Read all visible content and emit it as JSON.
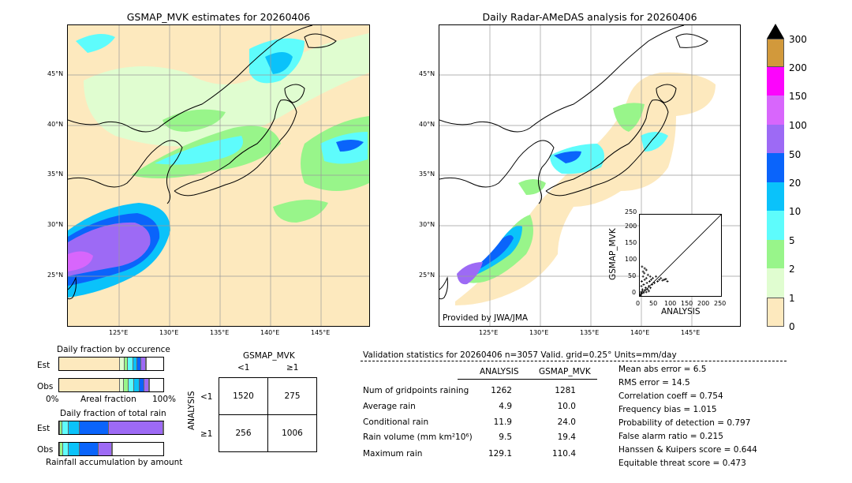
{
  "colors": {
    "land_bg": "#fde9be",
    "c1": "#fde9be",
    "c2": "#e0fdd0",
    "c3": "#98f58a",
    "c4": "#5efcfc",
    "c5": "#0ac2fa",
    "c6": "#0a64fb",
    "c7": "#9d6af5",
    "c8": "#d866fc",
    "c9": "#fc05fc",
    "c10": "#d2993b",
    "coast": "#000000",
    "grid": "#9a9a9a"
  },
  "left_map": {
    "title": "GSMAP_MVK estimates for 20260406",
    "lat_labels": [
      "45°N",
      "40°N",
      "35°N",
      "30°N",
      "25°N"
    ],
    "lon_labels": [
      "125°E",
      "130°E",
      "135°E",
      "140°E",
      "145°E"
    ]
  },
  "right_map": {
    "title": "Daily Radar-AMeDAS analysis for 20260406",
    "lat_labels": [
      "45°N",
      "40°N",
      "35°N",
      "30°N",
      "25°N"
    ],
    "lon_labels": [
      "125°E",
      "130°E",
      "135°E",
      "140°E",
      "145°E"
    ],
    "credit": "Provided by JWA/JMA"
  },
  "colorbar": {
    "labels": [
      "0",
      "1",
      "2",
      "5",
      "10",
      "20",
      "50",
      "100",
      "150",
      "200",
      "300"
    ]
  },
  "scatter": {
    "ylabel": "GSMAP_MVK",
    "xlabel": "ANALYSIS",
    "ticks": [
      "0",
      "50",
      "100",
      "150",
      "200",
      "250"
    ]
  },
  "occurrence": {
    "title": "Daily fraction by occurence",
    "est_label": "Est",
    "obs_label": "Obs",
    "axis_left": "0%",
    "axis_mid": "Areal fraction",
    "axis_right": "100%"
  },
  "total_rain": {
    "title": "Daily fraction of total rain",
    "est_label": "Est",
    "obs_label": "Obs",
    "footer": "Rainfall accumulation by amount"
  },
  "contingency": {
    "title": "GSMAP_MVK",
    "col_lt1": "<1",
    "col_ge1": "≥1",
    "row_axis": "ANALYSIS",
    "row_lt1": "<1",
    "row_ge1": "≥1",
    "a": "1520",
    "b": "275",
    "c": "256",
    "d": "1006"
  },
  "validation": {
    "header": "Validation statistics for 20260406  n=3057 Valid. grid=0.25° Units=mm/day",
    "col_analysis": "ANALYSIS",
    "col_gsmap": "GSMAP_MVK",
    "rows": [
      {
        "label": "Num of gridpoints raining",
        "analysis": "1262",
        "gsmap": "1281"
      },
      {
        "label": "Average rain",
        "analysis": "4.9",
        "gsmap": "10.0"
      },
      {
        "label": "Conditional rain",
        "analysis": "11.9",
        "gsmap": "24.0"
      },
      {
        "label": "Rain volume (mm km²10⁶)",
        "analysis": "9.5",
        "gsmap": "19.4"
      },
      {
        "label": "Maximum rain",
        "analysis": "129.1",
        "gsmap": "110.4"
      }
    ],
    "scores": [
      "Mean abs error =    6.5",
      "RMS error =   14.5",
      "Correlation coeff =  0.754",
      "Frequency bias =  1.015",
      "Probability of detection =  0.797",
      "False alarm ratio =  0.215",
      "Hanssen & Kuipers score =  0.644",
      "Equitable threat score =  0.473"
    ]
  },
  "chart_data": [
    {
      "type": "table",
      "title": "GSMAP_MVK",
      "columns": [
        "<1",
        "≥1"
      ],
      "rows": [
        {
          "name": "<1",
          "values": [
            1520,
            275
          ]
        },
        {
          "name": "≥1",
          "values": [
            256,
            1006
          ]
        }
      ]
    },
    {
      "type": "bar",
      "title": "Daily fraction by occurence",
      "xlabel": "Areal fraction",
      "categories": [
        "Est",
        "Obs"
      ],
      "series": [
        {
          "values": [
            0.58,
            0.58
          ]
        },
        {
          "values": [
            0.05,
            0.04
          ]
        },
        {
          "values": [
            0.03,
            0.05
          ]
        },
        {
          "values": [
            0.05,
            0.05
          ]
        },
        {
          "values": [
            0.04,
            0.05
          ]
        },
        {
          "values": [
            0.04,
            0.05
          ]
        },
        {
          "values": [
            0.04,
            0.04
          ]
        },
        {
          "values": [
            0.01,
            0.01
          ]
        }
      ]
    },
    {
      "type": "bar",
      "title": "Daily fraction of total rain",
      "xlabel": "Rainfall accumulation by amount",
      "categories": [
        "Est",
        "Obs"
      ],
      "series": [
        {
          "values": [
            0.01,
            0.01
          ]
        },
        {
          "values": [
            0.02,
            0.03
          ]
        },
        {
          "values": [
            0.06,
            0.05
          ]
        },
        {
          "values": [
            0.11,
            0.11
          ]
        },
        {
          "values": [
            0.28,
            0.18
          ]
        },
        {
          "values": [
            0.52,
            0.13
          ]
        },
        {
          "values": [
            0.01,
            0.0
          ]
        }
      ]
    },
    {
      "type": "scatter",
      "xlabel": "ANALYSIS",
      "ylabel": "GSMAP_MVK",
      "xlim": [
        0,
        250
      ],
      "ylim": [
        0,
        250
      ],
      "points": [
        [
          2,
          5
        ],
        [
          4,
          12
        ],
        [
          5,
          30
        ],
        [
          6,
          45
        ],
        [
          8,
          20
        ],
        [
          10,
          60
        ],
        [
          12,
          35
        ],
        [
          14,
          70
        ],
        [
          15,
          50
        ],
        [
          18,
          25
        ],
        [
          20,
          55
        ],
        [
          22,
          40
        ],
        [
          25,
          65
        ],
        [
          28,
          30
        ],
        [
          30,
          45
        ],
        [
          32,
          60
        ],
        [
          35,
          50
        ],
        [
          38,
          35
        ],
        [
          40,
          55
        ],
        [
          45,
          40
        ],
        [
          50,
          60
        ],
        [
          55,
          45
        ],
        [
          60,
          50
        ],
        [
          65,
          55
        ],
        [
          70,
          48
        ],
        [
          75,
          50
        ],
        [
          80,
          52
        ],
        [
          85,
          45
        ],
        [
          3,
          2
        ],
        [
          6,
          8
        ],
        [
          9,
          15
        ],
        [
          12,
          10
        ],
        [
          16,
          18
        ],
        [
          20,
          12
        ],
        [
          24,
          20
        ],
        [
          28,
          15
        ],
        [
          33,
          25
        ],
        [
          7,
          90
        ],
        [
          10,
          75
        ],
        [
          15,
          85
        ],
        [
          20,
          80
        ]
      ]
    }
  ]
}
